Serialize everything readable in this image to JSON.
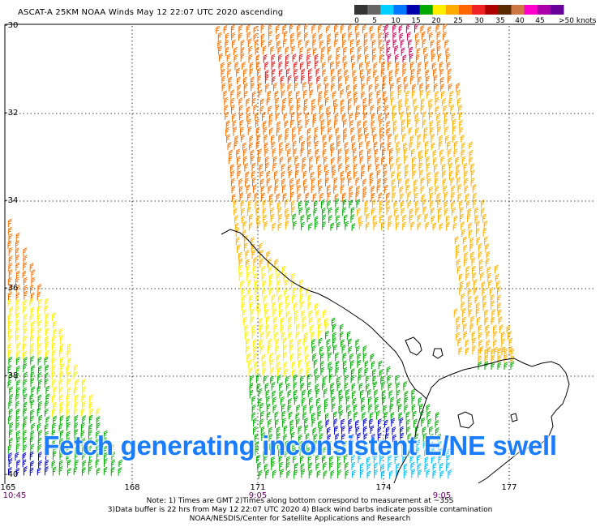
{
  "header": {
    "title": "ASCAT-A 25KM NOAA Winds May 12 22:07 UTC 2020 ascending"
  },
  "scale": {
    "labels": [
      "0",
      "5",
      "10",
      "15",
      "20",
      "25",
      "30",
      "35",
      "40",
      "45",
      ">50 knots"
    ],
    "colors": [
      "#333333",
      "#666666",
      "#00d0ff",
      "#0077ff",
      "#0000aa",
      "#00aa00",
      "#ffee00",
      "#ffaa00",
      "#ff6600",
      "#ee2222",
      "#aa0000",
      "#5a2a00",
      "#cc7744",
      "#ff00cc",
      "#aa00aa",
      "#660099"
    ]
  },
  "map": {
    "lat_labels": [
      "-30",
      "-32",
      "-34",
      "-36",
      "-38",
      "-40"
    ],
    "lon_labels": [
      "165",
      "168",
      "171",
      "174",
      "177"
    ],
    "time_labels": [
      "10:45",
      "9:05",
      "9:05"
    ]
  },
  "notes": {
    "line1": "Note: 1) Times are GMT 2)Times along bottom correspond to measurement at ~35S",
    "line2": "3)Data buffer is 22 hrs from May 12 22:07 UTC 2020 4) Black wind barbs indicate possible contamination",
    "line3": "NOAA/NESDIS/Center for Satellite Applications and Research"
  },
  "overlay": {
    "caption": "Fetch generating inconsistent E/NE swell"
  },
  "wind_colors": {
    "blue": "#0000cc",
    "cyan": "#00bbff",
    "green": "#00aa00",
    "yellow": "#ffee00",
    "gold": "#ffb000",
    "orange": "#ff7000",
    "red": "#dd2020",
    "magenta": "#cc0055"
  }
}
